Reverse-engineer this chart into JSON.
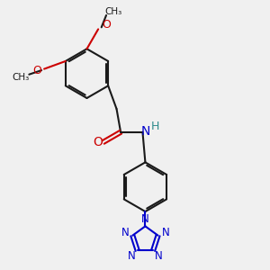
{
  "bg_color": "#f0f0f0",
  "bond_color": "#1a1a1a",
  "N_color": "#0000cc",
  "O_color": "#cc0000",
  "H_color": "#2e8b8b",
  "lw": 1.5,
  "dbo": 0.07,
  "figsize": [
    3.0,
    3.0
  ],
  "dpi": 100,
  "xlim": [
    0,
    10
  ],
  "ylim": [
    0,
    10
  ]
}
